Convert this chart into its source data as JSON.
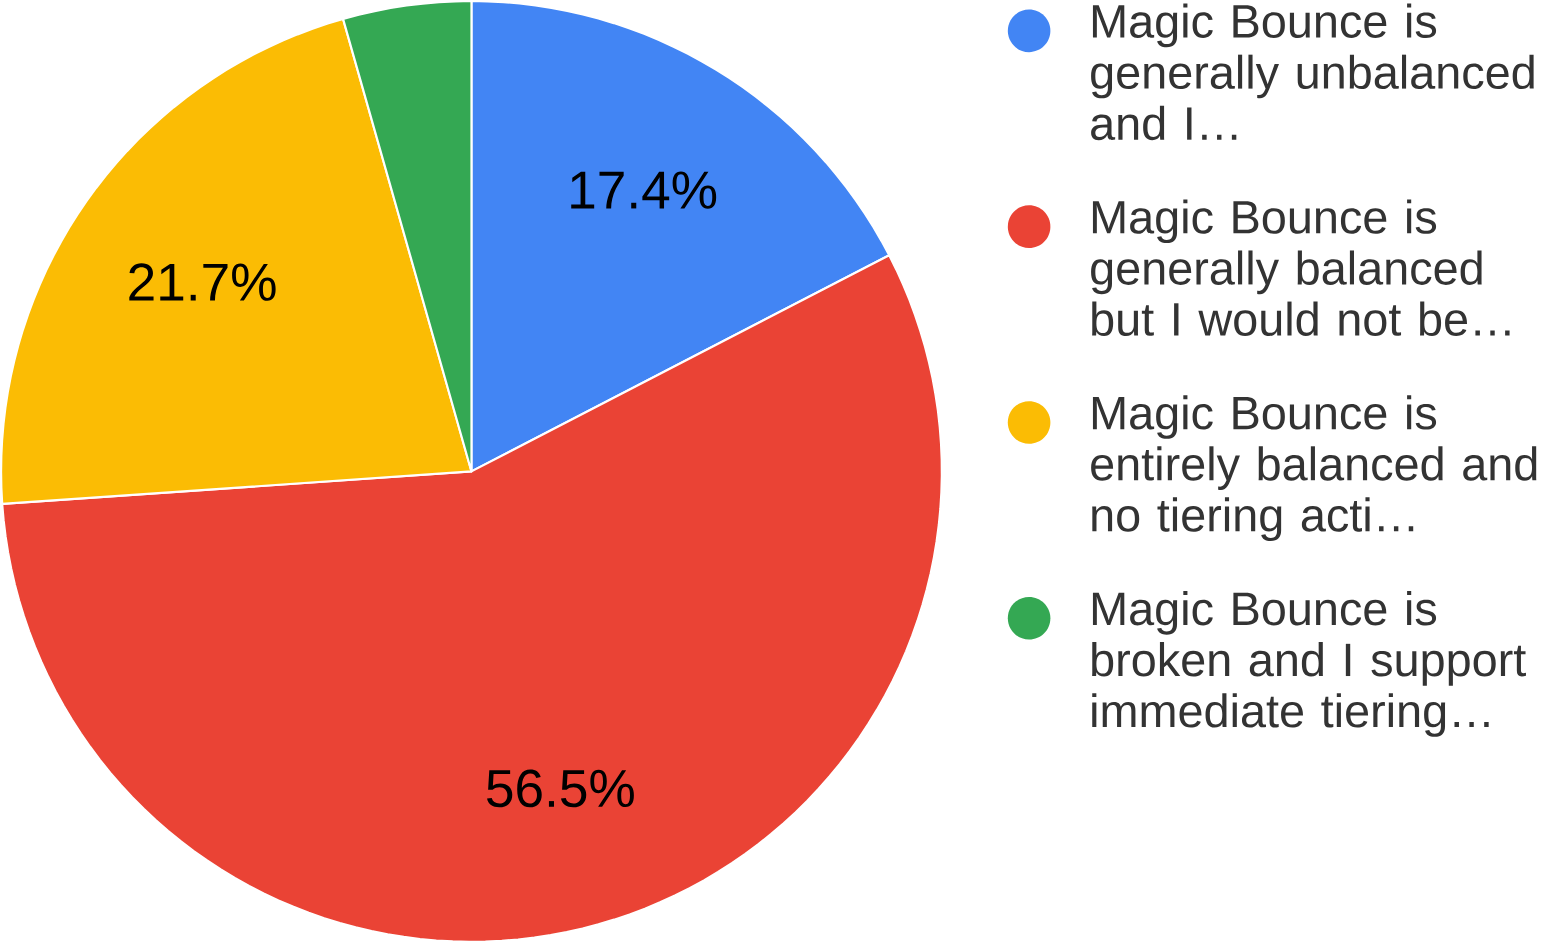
{
  "chart_data": {
    "type": "pie",
    "categories": [
      "Magic Bounce is generally unbalanced and I…",
      "Magic Bounce is generally balanced but I would not be…",
      "Magic Bounce is entirely balanced and no tiering acti…",
      "Magic Bounce is broken and I support immediate tiering…"
    ],
    "values": [
      17.4,
      56.5,
      21.7,
      4.4
    ],
    "colors": [
      "#4285f4",
      "#ea4335",
      "#fbbc04",
      "#34a853"
    ],
    "value_labels": [
      "17.4%",
      "56.5%",
      "21.7%",
      null
    ],
    "legend": "right"
  }
}
